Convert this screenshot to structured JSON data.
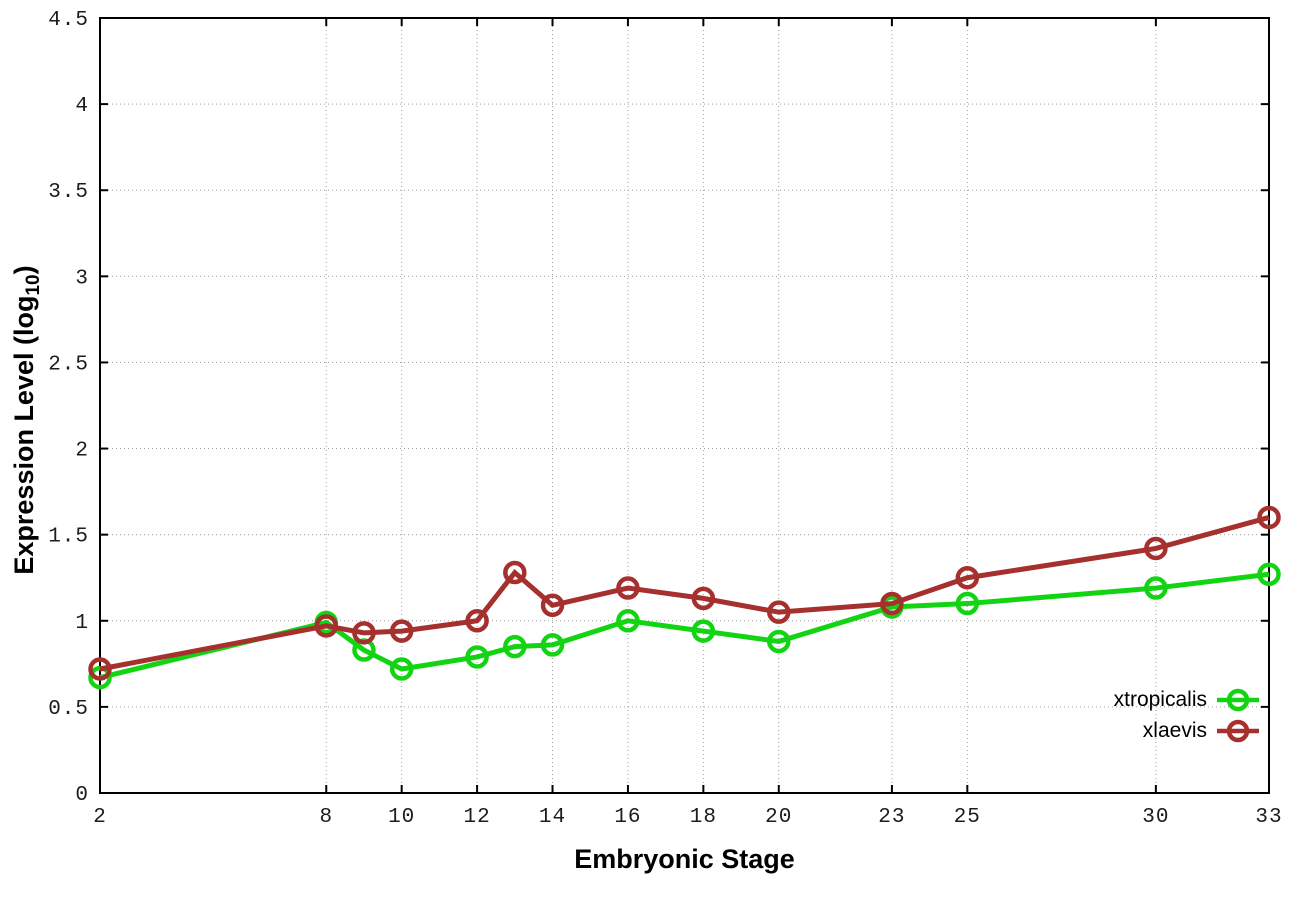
{
  "figure": {
    "background": "#ffffff",
    "axis_color": "#000000",
    "grid_color": "#9e9e9e",
    "tick_label_color": "#1c1c1c",
    "xlabel": "Embryonic Stage",
    "ylabel_main": "Expression Level (log",
    "ylabel_sub": "10",
    "ylabel_end": ")"
  },
  "chart_data": {
    "type": "line",
    "title": "",
    "xlabel": "Embryonic Stage",
    "ylabel": "Expression Level (log10)",
    "x": [
      2,
      8,
      9,
      10,
      12,
      13,
      14,
      16,
      18,
      20,
      23,
      25,
      30,
      33
    ],
    "series": [
      {
        "name": "xtropicalis",
        "color": "#12d412",
        "values": [
          0.67,
          0.99,
          0.83,
          0.72,
          0.79,
          0.85,
          0.86,
          1.0,
          0.94,
          0.88,
          1.08,
          1.1,
          1.19,
          1.27
        ]
      },
      {
        "name": "xlaevis",
        "color": "#a5302d",
        "values": [
          0.72,
          0.97,
          0.93,
          0.94,
          1.0,
          1.28,
          1.09,
          1.19,
          1.13,
          1.05,
          1.1,
          1.25,
          1.42,
          1.6
        ]
      }
    ],
    "xlim": [
      2,
      33
    ],
    "ylim": [
      0,
      4.5
    ],
    "xticks": [
      2,
      8,
      10,
      12,
      14,
      16,
      18,
      20,
      23,
      25,
      30,
      33
    ],
    "xtick_labels": [
      "2",
      "8",
      "10",
      "12",
      "14",
      "16",
      "18",
      "20",
      "23",
      "25",
      "30",
      "33"
    ],
    "yticks": [
      0,
      0.5,
      1,
      1.5,
      2,
      2.5,
      3,
      3.5,
      4,
      4.5
    ],
    "ytick_labels": [
      "0",
      "0.5",
      "1",
      "1.5",
      "2",
      "2.5",
      "3",
      "3.5",
      "4",
      "4.5"
    ],
    "grid": true,
    "grid_style": "dotted",
    "ticks_mirrored": true,
    "legend_position": "bottom-right",
    "marker": "open-circle"
  }
}
